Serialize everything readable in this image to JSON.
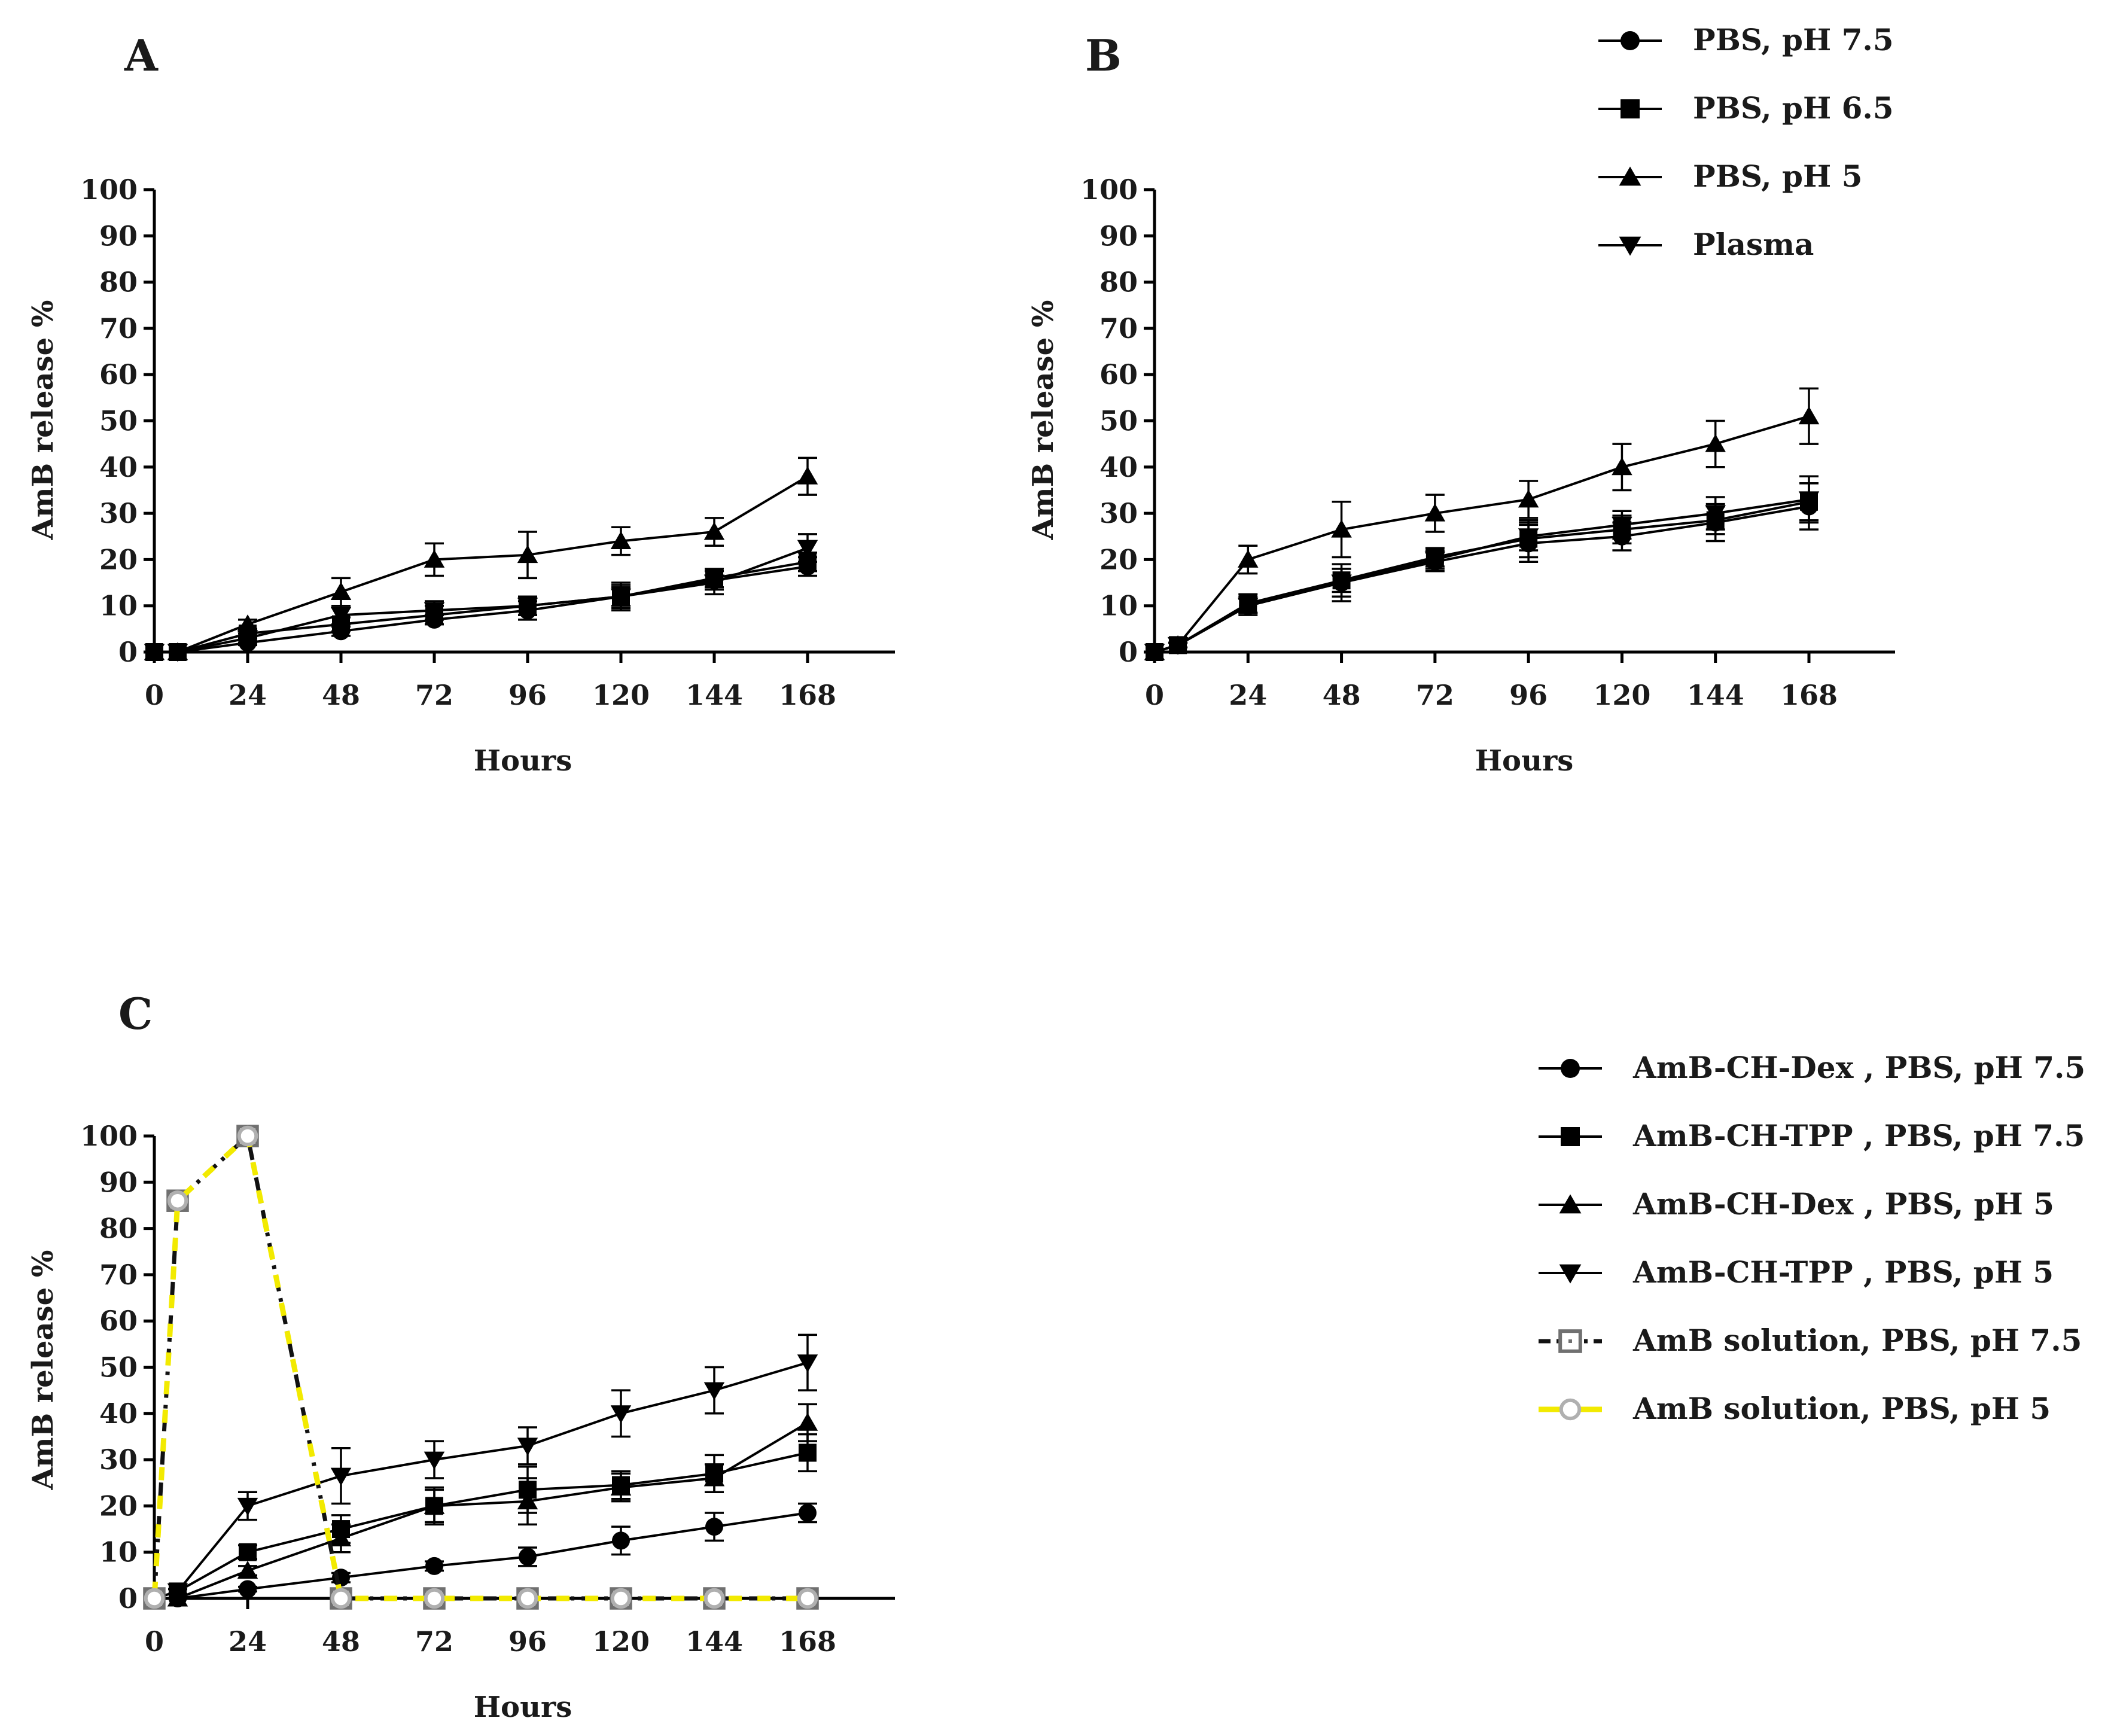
{
  "panels": [
    {
      "label": "A",
      "xlabel": "Hours",
      "ylabel": "AmB release %",
      "xticks": [
        0,
        24,
        48,
        72,
        96,
        120,
        144,
        168
      ],
      "yticks": [
        0,
        10,
        20,
        30,
        40,
        50,
        60,
        70,
        80,
        90,
        100
      ]
    },
    {
      "label": "B",
      "xlabel": "Hours",
      "ylabel": "AmB release %",
      "xticks": [
        0,
        24,
        48,
        72,
        96,
        120,
        144,
        168
      ],
      "yticks": [
        0,
        10,
        20,
        30,
        40,
        50,
        60,
        70,
        80,
        90,
        100
      ]
    },
    {
      "label": "C",
      "xlabel": "Hours",
      "ylabel": "AmB release %",
      "xticks": [
        0,
        24,
        48,
        72,
        96,
        120,
        144,
        168
      ],
      "yticks": [
        0,
        10,
        20,
        30,
        40,
        50,
        60,
        70,
        80,
        90,
        100
      ]
    }
  ],
  "legend_ab": [
    {
      "label": "PBS,  pH 7.5",
      "marker": "circle"
    },
    {
      "label": "PBS,  pH 6.5",
      "marker": "square"
    },
    {
      "label": "PBS,  pH 5",
      "marker": "triangle-up"
    },
    {
      "label": "Plasma",
      "marker": "triangle-down"
    }
  ],
  "legend_c": [
    {
      "label": "AmB-CH-Dex , PBS, pH 7.5",
      "marker": "circle"
    },
    {
      "label": "AmB-CH-TPP , PBS, pH 7.5",
      "marker": "square"
    },
    {
      "label": "AmB-CH-Dex , PBS, pH 5",
      "marker": "triangle-up"
    },
    {
      "label": "AmB-CH-TPP , PBS, pH 5",
      "marker": "triangle-down"
    },
    {
      "label": "AmB solution, PBS, pH 7.5",
      "marker": "open-square-dot"
    },
    {
      "label": "AmB solution, PBS, pH 5",
      "marker": "open-circle"
    }
  ],
  "colors": {
    "series": "#000000",
    "solution_square": "#707070",
    "solution_circle": "#b0b0b0",
    "yellow": "#f2ea00"
  },
  "chart_data": [
    {
      "type": "line",
      "panel": "A",
      "xlabel": "Hours",
      "ylabel": "AmB release %",
      "xlim": [
        0,
        190
      ],
      "ylim": [
        0,
        100
      ],
      "x": [
        0,
        6,
        24,
        48,
        72,
        96,
        120,
        144,
        168
      ],
      "series": [
        {
          "name": "PBS,  pH 7.5",
          "marker": "circle",
          "values": [
            0,
            0,
            2,
            4.5,
            7,
            9,
            12,
            15.5,
            18.5
          ],
          "errors": [
            0,
            0,
            0.5,
            1,
            1,
            2,
            2.5,
            2,
            2
          ]
        },
        {
          "name": "PBS,  pH 6.5",
          "marker": "square",
          "values": [
            0,
            0,
            4,
            6,
            8,
            10,
            12,
            16,
            19.5
          ],
          "errors": [
            0,
            0,
            1,
            1.5,
            2,
            2,
            2,
            2,
            2
          ]
        },
        {
          "name": "PBS,  pH 5",
          "marker": "triangle-up",
          "values": [
            0,
            0,
            6,
            13,
            20,
            21,
            24,
            26,
            38
          ],
          "errors": [
            0,
            0,
            1,
            3,
            3.5,
            5,
            3,
            3,
            4
          ]
        },
        {
          "name": "Plasma",
          "marker": "triangle-down",
          "values": [
            0,
            0,
            3,
            8,
            9,
            10,
            12,
            15,
            22.5
          ],
          "errors": [
            0,
            0,
            1,
            2,
            2,
            2,
            3,
            2.5,
            3
          ]
        }
      ]
    },
    {
      "type": "line",
      "panel": "B",
      "xlabel": "Hours",
      "ylabel": "AmB release %",
      "xlim": [
        0,
        190
      ],
      "ylim": [
        0,
        100
      ],
      "x": [
        0,
        6,
        24,
        48,
        72,
        96,
        120,
        144,
        168
      ],
      "series": [
        {
          "name": "PBS,  pH 7.5",
          "marker": "circle",
          "values": [
            0,
            1.5,
            10,
            15,
            19.5,
            23.5,
            25,
            28,
            31.5
          ],
          "errors": [
            0,
            0.5,
            1.5,
            3,
            2,
            4,
            3,
            4,
            5
          ]
        },
        {
          "name": "PBS,  pH 6.5",
          "marker": "square",
          "values": [
            0,
            1.5,
            10.5,
            15.5,
            20.5,
            24.5,
            26.5,
            28.5,
            32.5
          ],
          "errors": [
            0,
            0.5,
            2,
            2.5,
            2,
            4,
            3,
            3,
            4
          ]
        },
        {
          "name": "PBS,  pH 5",
          "marker": "triangle-up",
          "values": [
            0,
            1.5,
            20,
            26.5,
            30,
            33,
            40,
            45,
            51
          ],
          "errors": [
            0,
            0.5,
            3,
            6,
            4,
            4,
            5,
            5,
            6
          ]
        },
        {
          "name": "Plasma",
          "marker": "triangle-down",
          "values": [
            0,
            1.5,
            10,
            15,
            20,
            25,
            27.5,
            30,
            33
          ],
          "errors": [
            0,
            0.5,
            2,
            4,
            2,
            3,
            3,
            3.5,
            5
          ]
        }
      ]
    },
    {
      "type": "line",
      "panel": "C",
      "xlabel": "Hours",
      "ylabel": "AmB release %",
      "xlim": [
        0,
        190
      ],
      "ylim": [
        0,
        100
      ],
      "x": [
        0,
        6,
        24,
        48,
        72,
        96,
        120,
        144,
        168
      ],
      "series": [
        {
          "name": "AmB-CH-Dex , PBS, pH 7.5",
          "marker": "circle",
          "values": [
            0,
            0,
            2,
            4.5,
            7,
            9,
            12.5,
            15.5,
            18.5
          ],
          "errors": [
            0,
            0,
            0.5,
            1,
            1,
            2,
            3,
            3,
            2
          ]
        },
        {
          "name": "AmB-CH-TPP , PBS, pH 7.5",
          "marker": "square",
          "values": [
            0,
            1.5,
            10,
            15,
            20,
            23.5,
            24.5,
            27,
            31.5
          ],
          "errors": [
            0,
            0.5,
            1.5,
            3,
            4,
            5,
            3,
            4,
            4
          ]
        },
        {
          "name": "AmB-CH-Dex , PBS, pH 5",
          "marker": "triangle-up",
          "values": [
            0,
            0,
            6,
            13,
            20,
            21,
            24,
            26,
            38
          ],
          "errors": [
            0,
            0,
            1,
            3,
            3.5,
            5,
            3,
            3,
            4
          ]
        },
        {
          "name": "AmB-CH-TPP , PBS, pH 5",
          "marker": "triangle-down",
          "values": [
            0,
            1.5,
            20,
            26.5,
            30,
            33,
            40,
            45,
            51
          ],
          "errors": [
            0,
            0.5,
            3,
            6,
            4,
            4,
            5,
            5,
            6
          ]
        },
        {
          "name": "AmB solution, PBS, pH 7.5",
          "marker": "open-square-dot",
          "values": [
            0,
            86,
            100,
            0,
            0,
            0,
            0,
            0,
            0
          ],
          "errors": [
            0,
            2,
            0,
            0,
            0,
            0,
            0,
            0,
            0
          ]
        },
        {
          "name": "AmB solution, PBS, pH 5",
          "marker": "open-circle",
          "values": [
            0,
            86,
            100,
            0,
            0,
            0,
            0,
            0,
            0
          ],
          "errors": [
            0,
            0,
            0,
            0,
            0,
            0,
            0,
            0,
            0
          ]
        }
      ]
    }
  ]
}
